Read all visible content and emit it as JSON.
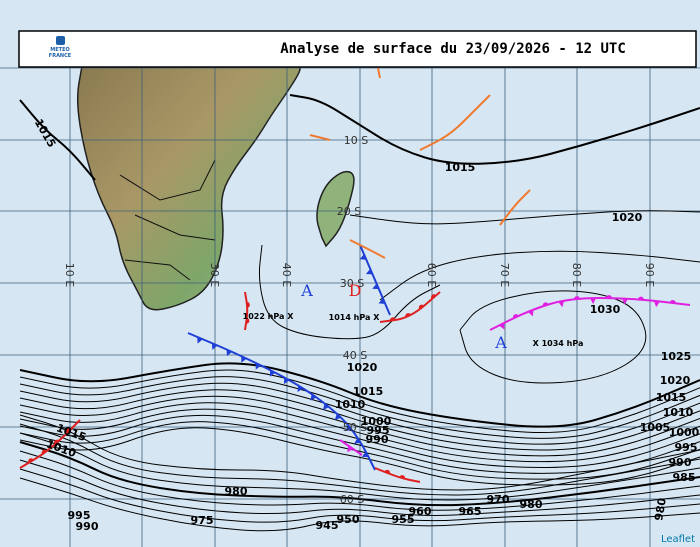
{
  "header": {
    "logo": [
      "METEO",
      "FRANCE"
    ],
    "title": "Analyse de surface du 23/09/2026 - 12 UTC"
  },
  "latitude_labels": [
    "10 S",
    "20 S",
    "30 S",
    "40 S",
    "50 S",
    "60 S"
  ],
  "longitude_labels": [
    "10 E",
    "30 E",
    "40 E",
    "60 E",
    "70 E",
    "80 E",
    "90 E"
  ],
  "isobar_labels": [
    "1015",
    "1015",
    "1020",
    "1030",
    "1025",
    "1020",
    "1015",
    "1010",
    "1005",
    "1000",
    "995",
    "990",
    "985",
    "980",
    "1020",
    "1015",
    "1010",
    "1000",
    "995",
    "990",
    "1015",
    "1010",
    "980",
    "975",
    "970",
    "965",
    "960",
    "955",
    "950",
    "945",
    "980",
    "995",
    "990"
  ],
  "centers": [
    {
      "symbol": "A",
      "text": "1022 hPa X"
    },
    {
      "symbol": "D",
      "text": "1014 hPa X"
    },
    {
      "symbol": "A",
      "text": "X 1034 hPa"
    }
  ],
  "attribution": "Leaflet"
}
